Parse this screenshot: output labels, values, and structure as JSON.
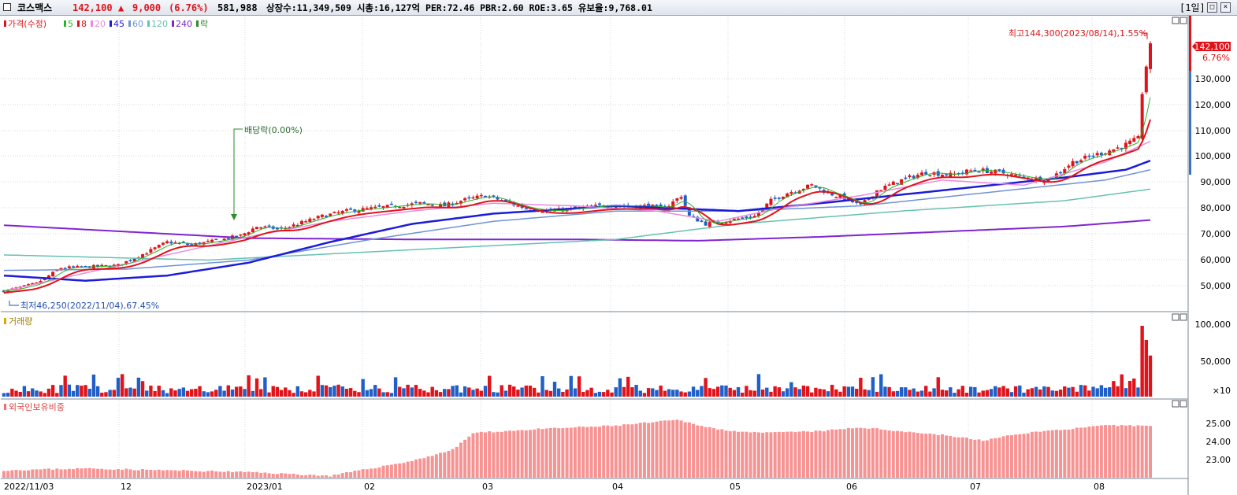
{
  "header": {
    "name": "코스맥스",
    "price": "142,100",
    "change_arrow": "▲",
    "change": "9,000",
    "change_pct": "(6.76%)",
    "volume": "581,988",
    "stats": "상장수:11,349,509 시총:16,127억 PER:72.46 PBR:2.60 ROE:3.65 유보율:9,768.01",
    "period": "[1일]"
  },
  "price_panel": {
    "legend": [
      {
        "label": "가격(수정)",
        "color": "#e0131b"
      },
      {
        "label": "5",
        "color": "#2bb32b"
      },
      {
        "label": "8",
        "color": "#e0131b"
      },
      {
        "label": "20",
        "color": "#e98be0"
      },
      {
        "label": "45",
        "color": "#1c1cd8"
      },
      {
        "label": "60",
        "color": "#6f93d6"
      },
      {
        "label": "120",
        "color": "#66c2b0"
      },
      {
        "label": "240",
        "color": "#7f25cf"
      },
      {
        "label": "락",
        "color": "#2e8b2e"
      }
    ],
    "annotations": {
      "high": "최고144,300(2023/08/14),1.55%",
      "low": "최저46,250(2022/11/04),67.45%",
      "dividend": "배당락(0.00%)"
    },
    "current_price": "142,100",
    "current_pct": "6.76%",
    "y_axis_labels": [
      "130,000",
      "120,000",
      "110,000",
      "100,000",
      "90,000",
      "80,000",
      "70,000",
      "60,000",
      "50,000"
    ]
  },
  "volume_panel": {
    "legend": "거래량",
    "y_axis_labels": [
      "100,000",
      "50,000",
      "×10"
    ]
  },
  "foreign_panel": {
    "legend": "외국인보유비중",
    "y_axis_labels": [
      "25.00",
      "24.00",
      "23.00"
    ]
  },
  "x_axis_labels": [
    "2022/11/03",
    "12",
    "2023/01",
    "02",
    "03",
    "04",
    "05",
    "06",
    "07",
    "08"
  ],
  "colors": {
    "up": "#e0131b",
    "down": "#1f5fc7",
    "ma5": "#2bb32b",
    "ma8": "#e0131b",
    "ma20": "#e98be0",
    "ma45": "#1c1cd8",
    "ma60": "#6f93d6",
    "ma120": "#66c2b0",
    "ma240": "#7f25cf",
    "foreign_bar": "#f79393",
    "dividend_marker": "#2e8b2e"
  },
  "chart_data": {
    "type": "candlestick",
    "date_start": "2022/11/03",
    "date_end": "2023/08/17",
    "ylim_price": [
      45000,
      146000
    ],
    "price_path": [
      [
        0,
        47000
      ],
      [
        8,
        50000
      ],
      [
        14,
        56000
      ],
      [
        22,
        56500
      ],
      [
        28,
        57000
      ],
      [
        35,
        62000
      ],
      [
        40,
        66000
      ],
      [
        46,
        65000
      ],
      [
        52,
        66500
      ],
      [
        58,
        68500
      ],
      [
        62,
        72000
      ],
      [
        68,
        71000
      ],
      [
        72,
        73000
      ],
      [
        78,
        76000
      ],
      [
        84,
        78000
      ],
      [
        90,
        79000
      ],
      [
        96,
        80000
      ],
      [
        102,
        81000
      ],
      [
        108,
        80000
      ],
      [
        112,
        82000
      ],
      [
        118,
        84000
      ],
      [
        122,
        82000
      ],
      [
        128,
        79000
      ],
      [
        134,
        78000
      ],
      [
        140,
        79000
      ],
      [
        146,
        80000
      ],
      [
        152,
        80000
      ],
      [
        158,
        80000
      ],
      [
        162,
        79000
      ],
      [
        166,
        84000
      ],
      [
        168,
        76000
      ],
      [
        172,
        73000
      ],
      [
        176,
        74000
      ],
      [
        180,
        75000
      ],
      [
        184,
        76000
      ],
      [
        188,
        82000
      ],
      [
        192,
        85000
      ],
      [
        198,
        88000
      ],
      [
        202,
        85000
      ],
      [
        206,
        83000
      ],
      [
        210,
        80000
      ],
      [
        214,
        86000
      ],
      [
        220,
        90000
      ],
      [
        226,
        93000
      ],
      [
        232,
        92000
      ],
      [
        238,
        94000
      ],
      [
        244,
        93000
      ],
      [
        250,
        91000
      ],
      [
        256,
        90000
      ],
      [
        262,
        97000
      ],
      [
        266,
        99000
      ],
      [
        270,
        101000
      ],
      [
        274,
        103000
      ],
      [
        278,
        106000
      ],
      [
        279,
        124000
      ],
      [
        280,
        133000
      ],
      [
        281,
        142100
      ]
    ],
    "ma240_path": [
      [
        0,
        72500
      ],
      [
        30,
        70000
      ],
      [
        60,
        67500
      ],
      [
        100,
        67000
      ],
      [
        140,
        67000
      ],
      [
        170,
        66500
      ],
      [
        200,
        68000
      ],
      [
        230,
        70000
      ],
      [
        260,
        72000
      ],
      [
        281,
        74500
      ]
    ],
    "ma120_path": [
      [
        0,
        61000
      ],
      [
        50,
        59000
      ],
      [
        100,
        63000
      ],
      [
        150,
        67000
      ],
      [
        180,
        73000
      ],
      [
        220,
        78000
      ],
      [
        260,
        82000
      ],
      [
        281,
        86500
      ]
    ],
    "ma60_path": [
      [
        0,
        55000
      ],
      [
        30,
        55500
      ],
      [
        60,
        59000
      ],
      [
        90,
        67000
      ],
      [
        120,
        74000
      ],
      [
        150,
        78000
      ],
      [
        180,
        78000
      ],
      [
        210,
        80000
      ],
      [
        240,
        85000
      ],
      [
        270,
        90000
      ],
      [
        281,
        94000
      ]
    ],
    "ma45_path": [
      [
        0,
        53000
      ],
      [
        20,
        51000
      ],
      [
        40,
        53000
      ],
      [
        60,
        58000
      ],
      [
        80,
        66000
      ],
      [
        100,
        73000
      ],
      [
        120,
        77000
      ],
      [
        150,
        80000
      ],
      [
        180,
        78000
      ],
      [
        200,
        81000
      ],
      [
        230,
        86000
      ],
      [
        260,
        91000
      ],
      [
        275,
        94000
      ],
      [
        281,
        97500
      ]
    ],
    "ma20_path": [
      [
        0,
        47000
      ],
      [
        20,
        54000
      ],
      [
        40,
        61000
      ],
      [
        60,
        68000
      ],
      [
        80,
        74000
      ],
      [
        100,
        78000
      ],
      [
        120,
        81000
      ],
      [
        140,
        80000
      ],
      [
        160,
        78000
      ],
      [
        175,
        74000
      ],
      [
        190,
        79000
      ],
      [
        210,
        84000
      ],
      [
        230,
        90000
      ],
      [
        250,
        88000
      ],
      [
        270,
        97000
      ],
      [
        281,
        105000
      ]
    ],
    "volume_max": 100000,
    "foreign_range": [
      22.5,
      25.8
    ],
    "foreign_path": [
      [
        0,
        22.9
      ],
      [
        20,
        23.0
      ],
      [
        40,
        22.9
      ],
      [
        60,
        22.8
      ],
      [
        80,
        22.6
      ],
      [
        100,
        23.4
      ],
      [
        110,
        24.0
      ],
      [
        115,
        24.9
      ],
      [
        130,
        25.1
      ],
      [
        150,
        25.3
      ],
      [
        160,
        25.5
      ],
      [
        165,
        25.6
      ],
      [
        175,
        25.1
      ],
      [
        185,
        24.9
      ],
      [
        200,
        25.0
      ],
      [
        210,
        25.2
      ],
      [
        220,
        25.0
      ],
      [
        230,
        24.8
      ],
      [
        240,
        24.5
      ],
      [
        250,
        24.9
      ],
      [
        260,
        25.1
      ],
      [
        270,
        25.3
      ],
      [
        281,
        25.3
      ]
    ]
  }
}
